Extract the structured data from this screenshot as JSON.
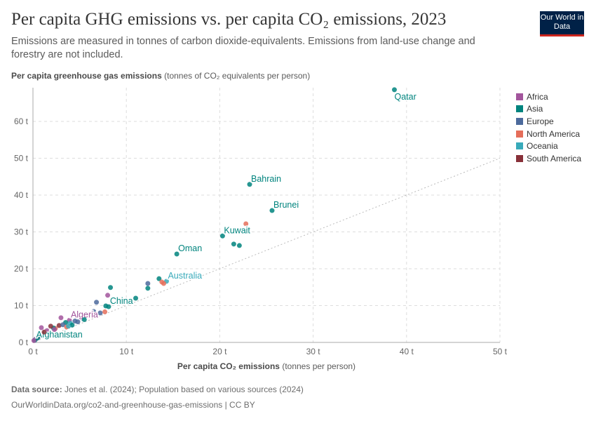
{
  "header": {
    "title": "Per capita GHG emissions vs. per capita CO₂ emissions, 2023",
    "subtitle": "Emissions are measured in tonnes of carbon dioxide-equivalents. Emissions from land-use change and forestry are not included.",
    "logo": "Our World in Data"
  },
  "footer": {
    "source_label": "Data source:",
    "source": "Jones et al. (2024); Population based on various sources (2024)",
    "url": "OurWorldinData.org/co2-and-greenhouse-gas-emissions | CC BY"
  },
  "chart_data": {
    "type": "scatter",
    "title": "Per capita GHG emissions vs. per capita CO₂ emissions, 2023",
    "xlabel_bold": "Per capita CO₂ emissions",
    "xlabel_unit": "(tonnes per person)",
    "ylabel_bold": "Per capita greenhouse gas emissions",
    "ylabel_unit": "(tonnes of CO₂ equivalents per person)",
    "xlim": [
      0,
      50
    ],
    "ylim": [
      0,
      68
    ],
    "xticks": [
      "0 t",
      "10 t",
      "20 t",
      "30 t",
      "40 t",
      "50 t"
    ],
    "yticks": [
      "0 t",
      "10 t",
      "20 t",
      "30 t",
      "40 t",
      "50 t",
      "60 t"
    ],
    "grid": true,
    "reference_line": "y = x",
    "legend_position": "right",
    "legend": [
      {
        "name": "Africa",
        "color": "#a2559c"
      },
      {
        "name": "Asia",
        "color": "#00847e"
      },
      {
        "name": "Europe",
        "color": "#4c6a9c"
      },
      {
        "name": "North America",
        "color": "#e56e5a"
      },
      {
        "name": "Oceania",
        "color": "#38aaba"
      },
      {
        "name": "South America",
        "color": "#883039"
      }
    ],
    "points": [
      {
        "label": "Qatar",
        "region": "Asia",
        "x": 38.7,
        "y": 68.6
      },
      {
        "label": "Bahrain",
        "region": "Asia",
        "x": 23.2,
        "y": 42.9
      },
      {
        "label": "Brunei",
        "region": "Asia",
        "x": 25.6,
        "y": 35.8
      },
      {
        "region": "North America",
        "x": 22.8,
        "y": 32.2
      },
      {
        "label": "Kuwait",
        "region": "Asia",
        "x": 20.3,
        "y": 28.9
      },
      {
        "region": "Asia",
        "x": 21.5,
        "y": 26.7
      },
      {
        "region": "Asia",
        "x": 22.1,
        "y": 26.3
      },
      {
        "label": "Oman",
        "region": "Asia",
        "x": 15.4,
        "y": 24.0
      },
      {
        "label": "Australia",
        "region": "Oceania",
        "x": 14.3,
        "y": 16.6
      },
      {
        "region": "Asia",
        "x": 13.5,
        "y": 17.3
      },
      {
        "region": "North America",
        "x": 13.8,
        "y": 16.4
      },
      {
        "region": "North America",
        "x": 14.0,
        "y": 16.0
      },
      {
        "region": "Europe",
        "x": 12.3,
        "y": 16.0
      },
      {
        "region": "Asia",
        "x": 12.3,
        "y": 14.7
      },
      {
        "region": "Asia",
        "x": 8.3,
        "y": 14.9
      },
      {
        "region": "Asia",
        "x": 11.0,
        "y": 12.0
      },
      {
        "region": "Africa",
        "x": 8.0,
        "y": 12.8
      },
      {
        "region": "Europe",
        "x": 6.8,
        "y": 10.9
      },
      {
        "label": "China",
        "region": "Asia",
        "x": 8.1,
        "y": 9.7
      },
      {
        "region": "Asia",
        "x": 7.8,
        "y": 9.9
      },
      {
        "region": "North America",
        "x": 7.7,
        "y": 8.3
      },
      {
        "region": "Europe",
        "x": 7.2,
        "y": 8.0
      },
      {
        "region": "Europe",
        "x": 6.5,
        "y": 8.4
      },
      {
        "region": "Europe",
        "x": 5.8,
        "y": 7.6
      },
      {
        "region": "Europe",
        "x": 5.2,
        "y": 6.6
      },
      {
        "label": "Algeria",
        "region": "Africa",
        "x": 3.9,
        "y": 6.0
      },
      {
        "region": "Africa",
        "x": 3.0,
        "y": 6.7
      },
      {
        "region": "Europe",
        "x": 4.5,
        "y": 5.8
      },
      {
        "region": "Oceania",
        "x": 4.0,
        "y": 5.2
      },
      {
        "region": "Asia",
        "x": 3.5,
        "y": 5.4
      },
      {
        "region": "South America",
        "x": 2.8,
        "y": 4.6
      },
      {
        "region": "North America",
        "x": 2.4,
        "y": 3.8
      },
      {
        "region": "Europe",
        "x": 3.2,
        "y": 4.8
      },
      {
        "region": "Asia",
        "x": 2.2,
        "y": 3.9
      },
      {
        "region": "South America",
        "x": 1.9,
        "y": 4.4
      },
      {
        "region": "Africa",
        "x": 2.3,
        "y": 3.5
      },
      {
        "region": "Asia",
        "x": 4.2,
        "y": 4.7
      },
      {
        "region": "North America",
        "x": 3.6,
        "y": 4.2
      },
      {
        "region": "Africa",
        "x": 0.9,
        "y": 4.0
      },
      {
        "region": "Africa",
        "x": 1.5,
        "y": 3.2
      },
      {
        "region": "Africa",
        "x": 0.6,
        "y": 1.5
      },
      {
        "region": "Africa",
        "x": 0.3,
        "y": 0.9
      },
      {
        "region": "Asia",
        "x": 0.5,
        "y": 1.2
      },
      {
        "label": "Afghanistan",
        "region": "Asia",
        "x": 0.2,
        "y": 0.6
      },
      {
        "region": "Africa",
        "x": 0.1,
        "y": 0.5
      },
      {
        "region": "South America",
        "x": 1.2,
        "y": 2.8
      },
      {
        "region": "Oceania",
        "x": 3.8,
        "y": 4.4
      },
      {
        "region": "Europe",
        "x": 4.8,
        "y": 5.6
      },
      {
        "region": "Asia",
        "x": 5.5,
        "y": 6.2
      }
    ]
  }
}
